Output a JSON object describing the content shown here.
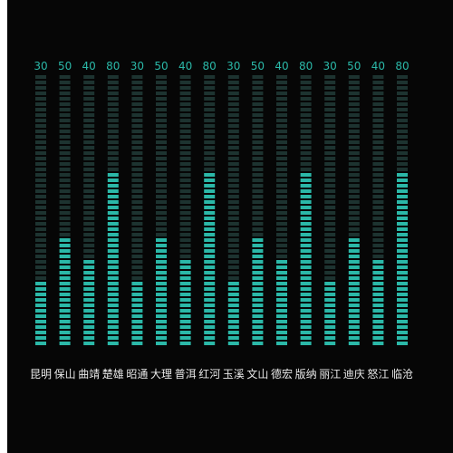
{
  "chart_data": {
    "type": "bar",
    "style": "segmented-led",
    "categories": [
      "昆明",
      "保山",
      "曲靖",
      "楚雄",
      "昭通",
      "大理",
      "普洱",
      "红河",
      "玉溪",
      "文山",
      "德宏",
      "版纳",
      "丽江",
      "迪庆",
      "怒江",
      "临沧"
    ],
    "values": [
      30,
      50,
      40,
      80,
      30,
      50,
      40,
      80,
      30,
      50,
      40,
      80,
      30,
      50,
      40,
      80
    ],
    "ylim": [
      0,
      125
    ],
    "segments": 50,
    "value_labels": [
      "30",
      "50",
      "40",
      "80",
      "30",
      "50",
      "40",
      "80",
      "30",
      "50",
      "40",
      "80",
      "30",
      "50",
      "40",
      "80"
    ],
    "title": "",
    "xlabel": "",
    "ylabel": "",
    "grid": false,
    "colors": {
      "filled": "#2bb8a8",
      "empty": "#1d3330",
      "value_text": "#2bb8a8",
      "category_text": "#e8e8e8",
      "background": "#060606"
    }
  }
}
